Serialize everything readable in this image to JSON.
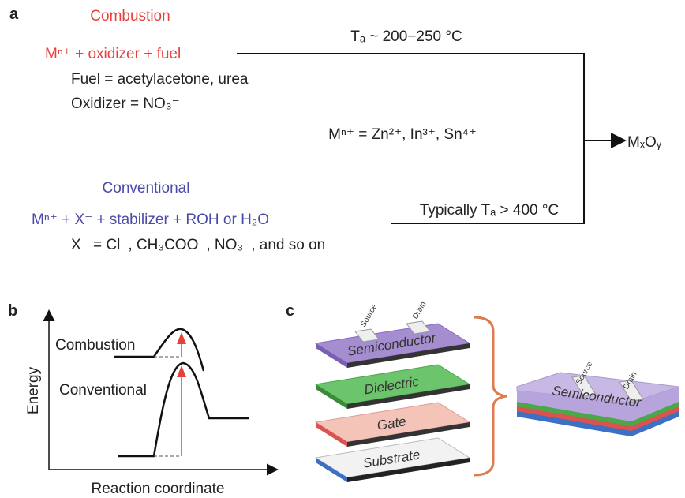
{
  "panel_a": {
    "label": "a",
    "combustion": {
      "title": "Combustion",
      "reaction": "Mⁿ⁺ + oxidizer + fuel",
      "fuel": "Fuel = acetylacetone, urea",
      "oxidizer": "Oxidizer = NO₃⁻",
      "temperature": "Tₐ ~ 200−250 °C"
    },
    "metals": "Mⁿ⁺ = Zn²⁺, In³⁺, Sn⁴⁺",
    "product": "MₓOᵧ",
    "conventional": {
      "title": "Conventional",
      "reaction": "Mⁿ⁺ + X⁻ + stabilizer + ROH or H₂O",
      "anions": "X⁻ = Cl⁻, CH₃COO⁻, NO₃⁻, and so on",
      "temperature": "Typically Tₐ > 400 °C"
    }
  },
  "panel_b": {
    "label": "b",
    "y_axis": "Energy",
    "x_axis": "Reaction coordinate",
    "curves": [
      "Combustion",
      "Conventional"
    ]
  },
  "panel_c": {
    "label": "c",
    "electrodes": [
      "Source",
      "Drain"
    ],
    "layers": [
      "Semiconductor",
      "Dielectric",
      "Gate",
      "Substrate"
    ],
    "device": {
      "layer": "Semiconductor",
      "electrodes": [
        "Source",
        "Drain"
      ]
    }
  }
}
